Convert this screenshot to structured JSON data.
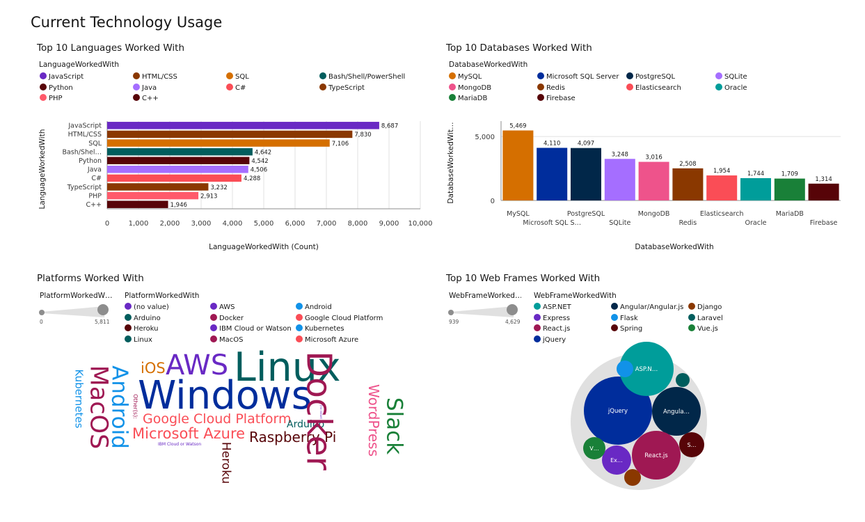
{
  "page": {
    "title": "Current Technology Usage"
  },
  "languages": {
    "title": "Top 10 Languages Worked With",
    "legend_title": "LanguageWorkedWith",
    "chart_data": {
      "type": "bar",
      "orientation": "horizontal",
      "title": "Top 10 Languages Worked With",
      "xlabel": "LanguageWorkedWith (Count)",
      "ylabel": "LanguageWorkedWith",
      "xlim": [
        0,
        10000
      ],
      "xticks": [
        "0",
        "1,000",
        "2,000",
        "3,000",
        "4,000",
        "5,000",
        "6,000",
        "7,000",
        "8,000",
        "9,000",
        "10,000"
      ],
      "categories": [
        "JavaScript",
        "HTML/CSS",
        "SQL",
        "Bash/Shell/PowerShell",
        "Python",
        "Java",
        "C#",
        "TypeScript",
        "PHP",
        "C++"
      ],
      "category_labels": [
        "JavaScript",
        "HTML/CSS",
        "SQL",
        "Bash/Shel…",
        "Python",
        "Java",
        "C#",
        "TypeScript",
        "PHP",
        "C++"
      ],
      "values": [
        8687,
        7830,
        7106,
        4642,
        4542,
        4506,
        4288,
        3232,
        2913,
        1946
      ],
      "value_labels": [
        "8,687",
        "7,830",
        "7,106",
        "4,642",
        "4,542",
        "4,506",
        "4,288",
        "3,232",
        "2,913",
        "1,946"
      ],
      "colors": [
        "#6929c4",
        "#8a3800",
        "#d56f00",
        "#005d5d",
        "#570408",
        "#a56eff",
        "#fa4d56",
        "#8a3800",
        "#ff5a6b",
        "#570408"
      ],
      "grid": true
    }
  },
  "databases": {
    "title": "Top 10 Databases Worked With",
    "legend_title": "DatabaseWorkedWith",
    "chart_data": {
      "type": "bar",
      "orientation": "vertical",
      "title": "Top 10 Databases Worked With",
      "xlabel": "DatabaseWorkedWith",
      "ylabel": "DatabaseWorkedWit…",
      "ylim": [
        0,
        6200
      ],
      "yticks": [
        "0",
        "5,000"
      ],
      "categories": [
        "MySQL",
        "Microsoft SQL Server",
        "PostgreSQL",
        "SQLite",
        "MongoDB",
        "Redis",
        "Elasticsearch",
        "Oracle",
        "MariaDB",
        "Firebase"
      ],
      "category_labels": [
        "MySQL",
        "Microsoft SQL S…",
        "PostgreSQL",
        "SQLite",
        "MongoDB",
        "Redis",
        "Elasticsearch",
        "Oracle",
        "MariaDB",
        "Firebase"
      ],
      "values": [
        5469,
        4110,
        4097,
        3248,
        3016,
        2508,
        1954,
        1744,
        1709,
        1314
      ],
      "value_labels": [
        "5,469",
        "4,110",
        "4,097",
        "3,248",
        "3,016",
        "2,508",
        "1,954",
        "1,744",
        "1,709",
        "1,314"
      ],
      "colors": [
        "#d56f00",
        "#002d9c",
        "#012749",
        "#a56eff",
        "#ee538b",
        "#8a3800",
        "#fa4d56",
        "#009d9a",
        "#198038",
        "#570408"
      ],
      "grid": true
    }
  },
  "platforms": {
    "title": "Platforms Worked With",
    "slider_title": "PlatformWorkedW…",
    "slider_min": "0",
    "slider_max": "5,811",
    "legend_title": "PlatformWorkedWith",
    "legend": [
      {
        "label": "(no value)",
        "color": "#6929c4"
      },
      {
        "label": "AWS",
        "color": "#6929c4"
      },
      {
        "label": "Android",
        "color": "#1192e8"
      },
      {
        "label": "Arduino",
        "color": "#005d5d"
      },
      {
        "label": "Docker",
        "color": "#9f1853"
      },
      {
        "label": "Google Cloud Platform",
        "color": "#fa4d56"
      },
      {
        "label": "Heroku",
        "color": "#570408"
      },
      {
        "label": "IBM Cloud or Watson",
        "color": "#6929c4"
      },
      {
        "label": "Kubernetes",
        "color": "#1192e8"
      },
      {
        "label": "Linux",
        "color": "#005d5d"
      },
      {
        "label": "MacOS",
        "color": "#9f1853"
      },
      {
        "label": "Microsoft Azure",
        "color": "#fa4d56"
      }
    ],
    "words": {
      "linux": "Linux",
      "aws": "AWS",
      "ios": "iOS",
      "windows": "Windows",
      "docker": "Docker",
      "wordpress": "WordPress",
      "slack": "Slack",
      "android": "Android",
      "macos": "MacOS",
      "kubernetes": "Kubernetes",
      "other": "Other(s):",
      "gcp": "Google Cloud Platform",
      "azure": "Microsoft Azure",
      "arduino": "Arduino",
      "rpi": "Raspberry Pi",
      "heroku": "Heroku",
      "ibm": "IBM Cloud or Watson",
      "novalue": "(no value)"
    },
    "word_colors": {
      "linux": "#005d5d",
      "aws": "#6929c4",
      "ios": "#d56f00",
      "windows": "#002d9c",
      "docker": "#9f1853",
      "wordpress": "#ee538b",
      "slack": "#198038",
      "android": "#1192e8",
      "macos": "#9f1853",
      "kubernetes": "#1192e8",
      "other": "#9f1853",
      "gcp": "#fa4d56",
      "azure": "#fa4d56",
      "arduino": "#005d5d",
      "rpi": "#570408",
      "heroku": "#570408",
      "ibm": "#6929c4",
      "novalue": "#6929c4"
    }
  },
  "webframes": {
    "title": "Top 10 Web Frames Worked With",
    "slider_title": "WebFrameWorked…",
    "slider_min": "939",
    "slider_max": "4,629",
    "legend_title": "WebFrameWorkedWith",
    "legend": [
      {
        "label": "ASP.NET",
        "color": "#009d9a"
      },
      {
        "label": "Angular/Angular.js",
        "color": "#012749"
      },
      {
        "label": "Django",
        "color": "#8a3800"
      },
      {
        "label": "Express",
        "color": "#6929c4"
      },
      {
        "label": "Flask",
        "color": "#1192e8"
      },
      {
        "label": "Laravel",
        "color": "#005d5d"
      },
      {
        "label": "React.js",
        "color": "#9f1853"
      },
      {
        "label": "Spring",
        "color": "#570408"
      },
      {
        "label": "Vue.js",
        "color": "#198038"
      },
      {
        "label": "jQuery",
        "color": "#002d9c"
      }
    ],
    "bubble_labels": {
      "jquery": "jQuery",
      "aspnet": "ASP.N…",
      "angular": "Angula…",
      "react": "React.js",
      "express": "Ex…",
      "vue": "V…",
      "spring": "S…"
    }
  }
}
